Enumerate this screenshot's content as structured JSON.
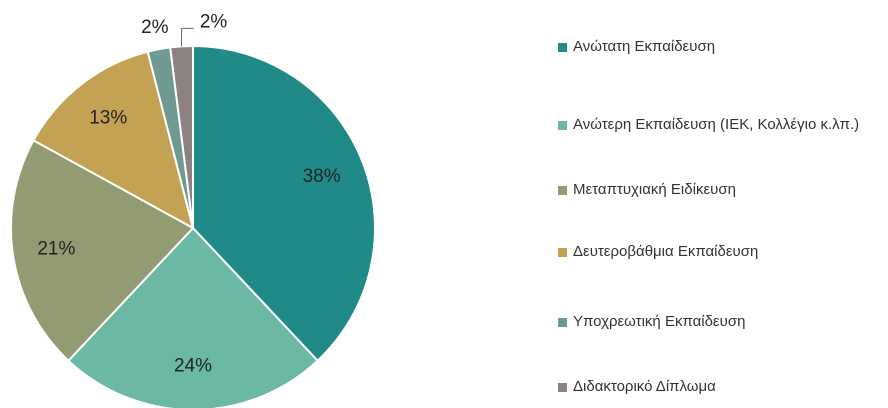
{
  "chart_data": {
    "type": "pie",
    "categories": [
      "Ανώτατη Εκπαίδευση",
      "Ανώτερη Εκπαίδευση (ΙΕΚ, Κολλέγιο κ.λπ.)",
      "Μεταπτυχιακή Ειδίκευση",
      "Δευτεροβάθμια Εκπαίδευση",
      "Υποχρεωτική Εκπαίδευση",
      "Διδακτορικό Δίπλωμα"
    ],
    "values": [
      38,
      24,
      21,
      13,
      2,
      2
    ],
    "value_labels": [
      "38%",
      "24%",
      "21%",
      "13%",
      "2%",
      "2%"
    ],
    "colors": [
      "#1f8a87",
      "#6bb8a4",
      "#939b73",
      "#c4a253",
      "#6e9a92",
      "#8c8282"
    ],
    "legend": "right"
  }
}
